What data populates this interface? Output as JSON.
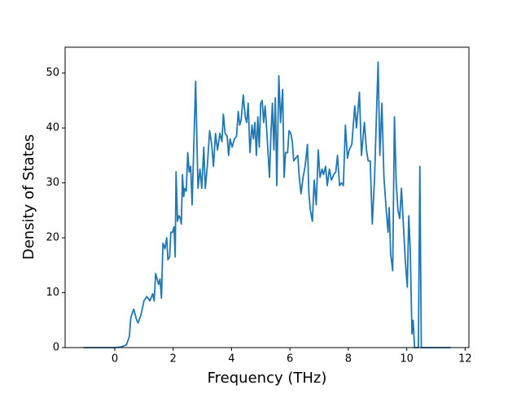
{
  "chart_data": {
    "type": "line",
    "xlabel": "Frequency (THz)",
    "ylabel": "Density of States",
    "x": [
      -1.07,
      0,
      0.2,
      0.4,
      0.5,
      0.55,
      0.65,
      0.75,
      0.8,
      0.9,
      1.0,
      1.1,
      1.2,
      1.3,
      1.35,
      1.4,
      1.5,
      1.55,
      1.6,
      1.65,
      1.72,
      1.78,
      1.82,
      1.88,
      1.92,
      1.98,
      2.03,
      2.07,
      2.1,
      2.15,
      2.2,
      2.25,
      2.28,
      2.32,
      2.36,
      2.4,
      2.45,
      2.5,
      2.55,
      2.6,
      2.65,
      2.77,
      2.85,
      2.92,
      2.98,
      3.05,
      3.1,
      3.17,
      3.25,
      3.32,
      3.38,
      3.45,
      3.52,
      3.6,
      3.67,
      3.72,
      3.78,
      3.85,
      3.9,
      3.95,
      4.02,
      4.1,
      4.17,
      4.23,
      4.28,
      4.33,
      4.4,
      4.47,
      4.52,
      4.57,
      4.63,
      4.7,
      4.75,
      4.8,
      4.85,
      4.9,
      4.95,
      5.0,
      5.05,
      5.1,
      5.15,
      5.2,
      5.3,
      5.35,
      5.4,
      5.45,
      5.5,
      5.55,
      5.62,
      5.68,
      5.75,
      5.8,
      5.85,
      5.92,
      5.97,
      6.03,
      6.08,
      6.13,
      6.2,
      6.27,
      6.32,
      6.38,
      6.45,
      6.52,
      6.6,
      6.65,
      6.7,
      6.77,
      6.83,
      6.9,
      6.97,
      7.03,
      7.1,
      7.15,
      7.22,
      7.28,
      7.35,
      7.42,
      7.5,
      7.57,
      7.63,
      7.7,
      7.77,
      7.83,
      7.9,
      7.97,
      8.03,
      8.12,
      8.22,
      8.28,
      8.38,
      8.45,
      8.55,
      8.62,
      8.68,
      8.75,
      8.82,
      8.9,
      8.95,
      9.02,
      9.08,
      9.15,
      9.22,
      9.3,
      9.36,
      9.4,
      9.45,
      9.52,
      9.58,
      9.64,
      9.7,
      9.76,
      9.82,
      9.95,
      10.02,
      10.07,
      10.12,
      10.18,
      10.22,
      10.27,
      10.32,
      10.4,
      10.45,
      10.5,
      11.5
    ],
    "series": [
      {
        "color": "#1f77b4",
        "values": [
          0,
          0,
          0.1,
          0.5,
          2,
          5.5,
          7,
          5,
          4.5,
          6,
          8.5,
          9.3,
          8.5,
          9.8,
          8.5,
          13.5,
          11.5,
          12.5,
          9,
          19,
          18,
          20,
          16,
          16.5,
          21,
          21,
          22,
          16.5,
          32,
          23,
          24,
          23.5,
          22.5,
          31.5,
          27.5,
          29,
          28.5,
          35.5,
          32,
          33,
          26,
          48.5,
          29,
          32.5,
          29,
          36.5,
          29,
          33,
          39.5,
          37,
          33,
          39,
          36,
          39,
          37.5,
          42.5,
          39,
          38.5,
          35,
          38,
          36.5,
          38,
          38.5,
          43,
          40.5,
          41.5,
          46,
          42,
          41,
          44.5,
          35.5,
          40.5,
          38,
          41,
          35,
          42,
          36.5,
          44.5,
          45,
          41,
          44,
          40,
          31,
          39,
          44.5,
          36,
          45.5,
          29.5,
          49.5,
          41,
          47,
          31,
          35.5,
          35.5,
          39.5,
          39,
          37.5,
          34,
          34.5,
          35,
          31,
          28,
          31,
          33,
          37,
          28,
          25,
          23,
          30.5,
          26,
          36,
          31,
          32.5,
          31.5,
          33,
          29.5,
          32.5,
          30.5,
          31.5,
          32,
          35,
          29.5,
          30,
          29.5,
          40.5,
          34.5,
          36,
          37,
          44,
          40,
          46.5,
          35,
          41,
          36,
          34,
          34,
          22.5,
          31,
          40,
          52,
          35,
          44.5,
          31,
          25,
          21,
          25.5,
          17,
          14,
          42,
          30,
          25,
          23.5,
          29,
          16,
          11,
          24,
          18,
          2.5,
          5,
          0,
          0,
          0,
          33,
          0,
          0
        ]
      }
    ],
    "xlim": [
      -1.7,
      12.13
    ],
    "ylim": [
      0,
      54.7
    ],
    "xticks": [
      0,
      2,
      4,
      6,
      8,
      10,
      12
    ],
    "yticks": [
      0,
      10,
      20,
      30,
      40,
      50
    ]
  }
}
